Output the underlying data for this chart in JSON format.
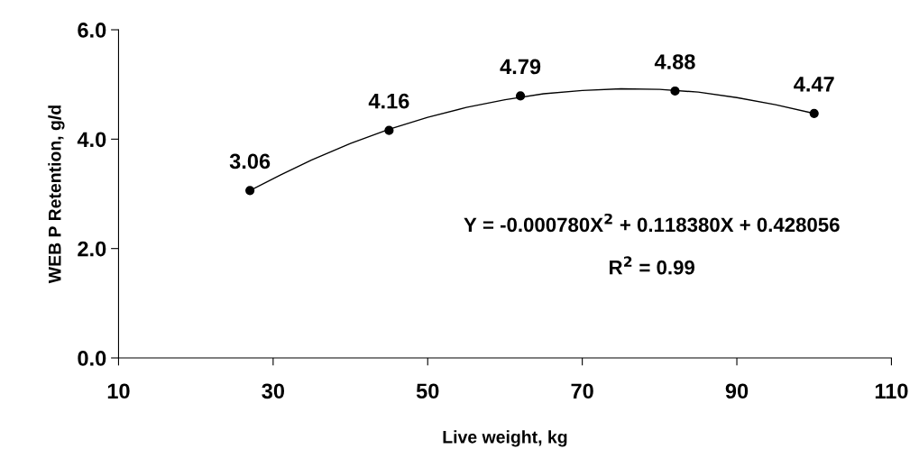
{
  "chart_data": {
    "type": "scatter",
    "xlabel": "Live weight, kg",
    "ylabel": "WEB P Retention, g/d",
    "series": [
      {
        "type": "line",
        "color": "#000000",
        "marker": "none",
        "x": [
          27,
          31,
          35,
          40,
          45,
          50,
          55,
          60,
          65,
          70,
          75,
          80,
          85,
          90,
          95,
          100
        ],
        "values": [
          3.06,
          3.35,
          3.62,
          3.92,
          4.18,
          4.4,
          4.58,
          4.72,
          4.83,
          4.89,
          4.92,
          4.91,
          4.86,
          4.76,
          4.63,
          4.47
        ]
      },
      {
        "color": "#000000",
        "marker": "circle",
        "x": [
          27,
          45,
          62,
          82,
          100
        ],
        "values": [
          3.06,
          4.16,
          4.79,
          4.88,
          4.47
        ],
        "value_labels": [
          "3.06",
          "4.16",
          "4.79",
          "4.88",
          "4.47"
        ]
      }
    ],
    "xlim": [
      10,
      110
    ],
    "xticks": [
      10,
      30,
      50,
      70,
      90,
      110
    ],
    "ylim": [
      0,
      6
    ],
    "yticks": [
      {
        "value": 0,
        "label": "0.0"
      },
      {
        "value": 2,
        "label": "2.0"
      },
      {
        "value": 4,
        "label": "4.0"
      },
      {
        "value": 6,
        "label": "6.0"
      }
    ],
    "grid": false,
    "legend": false,
    "annotations": [
      "Y = -0.000780X$^{2}$ + 0.118380X + 0.428056",
      "R$^{2}$ = 0.99"
    ]
  }
}
